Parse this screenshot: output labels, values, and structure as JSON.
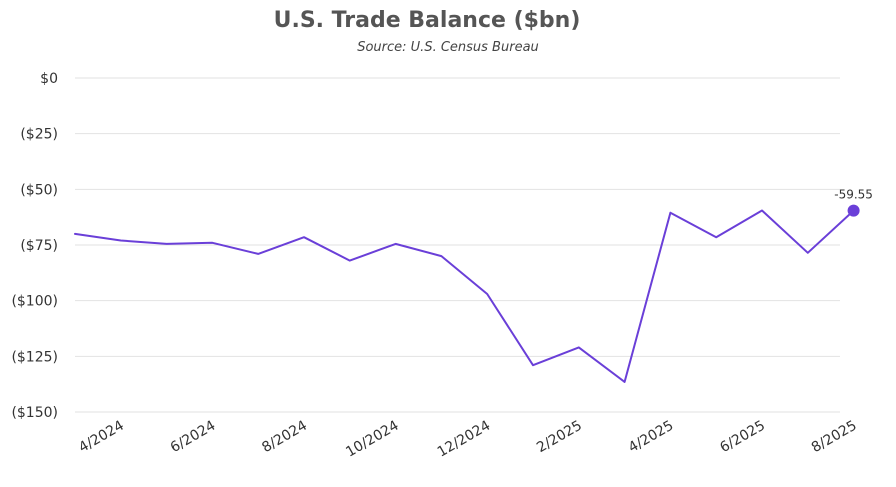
{
  "chart_data": {
    "type": "line",
    "title": "U.S. Trade Balance ($bn)",
    "subtitle": "Source: U.S. Census Bureau",
    "xlabel": "",
    "ylabel": "",
    "x": [
      "3/2024",
      "4/2024",
      "5/2024",
      "6/2024",
      "7/2024",
      "8/2024",
      "9/2024",
      "10/2024",
      "11/2024",
      "12/2024",
      "1/2025",
      "2/2025",
      "3/2025",
      "4/2025",
      "5/2025",
      "6/2025",
      "7/2025",
      "8/2025"
    ],
    "x_tick_labels": [
      "4/2024",
      "6/2024",
      "8/2024",
      "10/2024",
      "12/2024",
      "2/2025",
      "4/2025",
      "6/2025",
      "8/2025"
    ],
    "y_tick_labels": [
      "$0",
      "($25)",
      "($50)",
      "($75)",
      "($100)",
      "($125)",
      "($150)"
    ],
    "y_tick_values": [
      0,
      -25,
      -50,
      -75,
      -100,
      -125,
      -150
    ],
    "ylim": [
      -150,
      0
    ],
    "grid": true,
    "series": [
      {
        "values": [
          -70.0,
          -73.0,
          -74.5,
          -74.0,
          -79.0,
          -71.5,
          -82.0,
          -74.5,
          -80.0,
          -97.0,
          -129.0,
          -121.0,
          -136.5,
          -60.5,
          -71.5,
          -59.5,
          -78.5,
          -59.55
        ],
        "color": "#6a3fd8"
      }
    ],
    "annotations": [
      {
        "text": "-59.55",
        "x": "8/2025",
        "y": -59.55
      }
    ]
  },
  "colors": {
    "line": "#6a3fd8",
    "grid": "#e2e2e2",
    "title": "#555555"
  }
}
